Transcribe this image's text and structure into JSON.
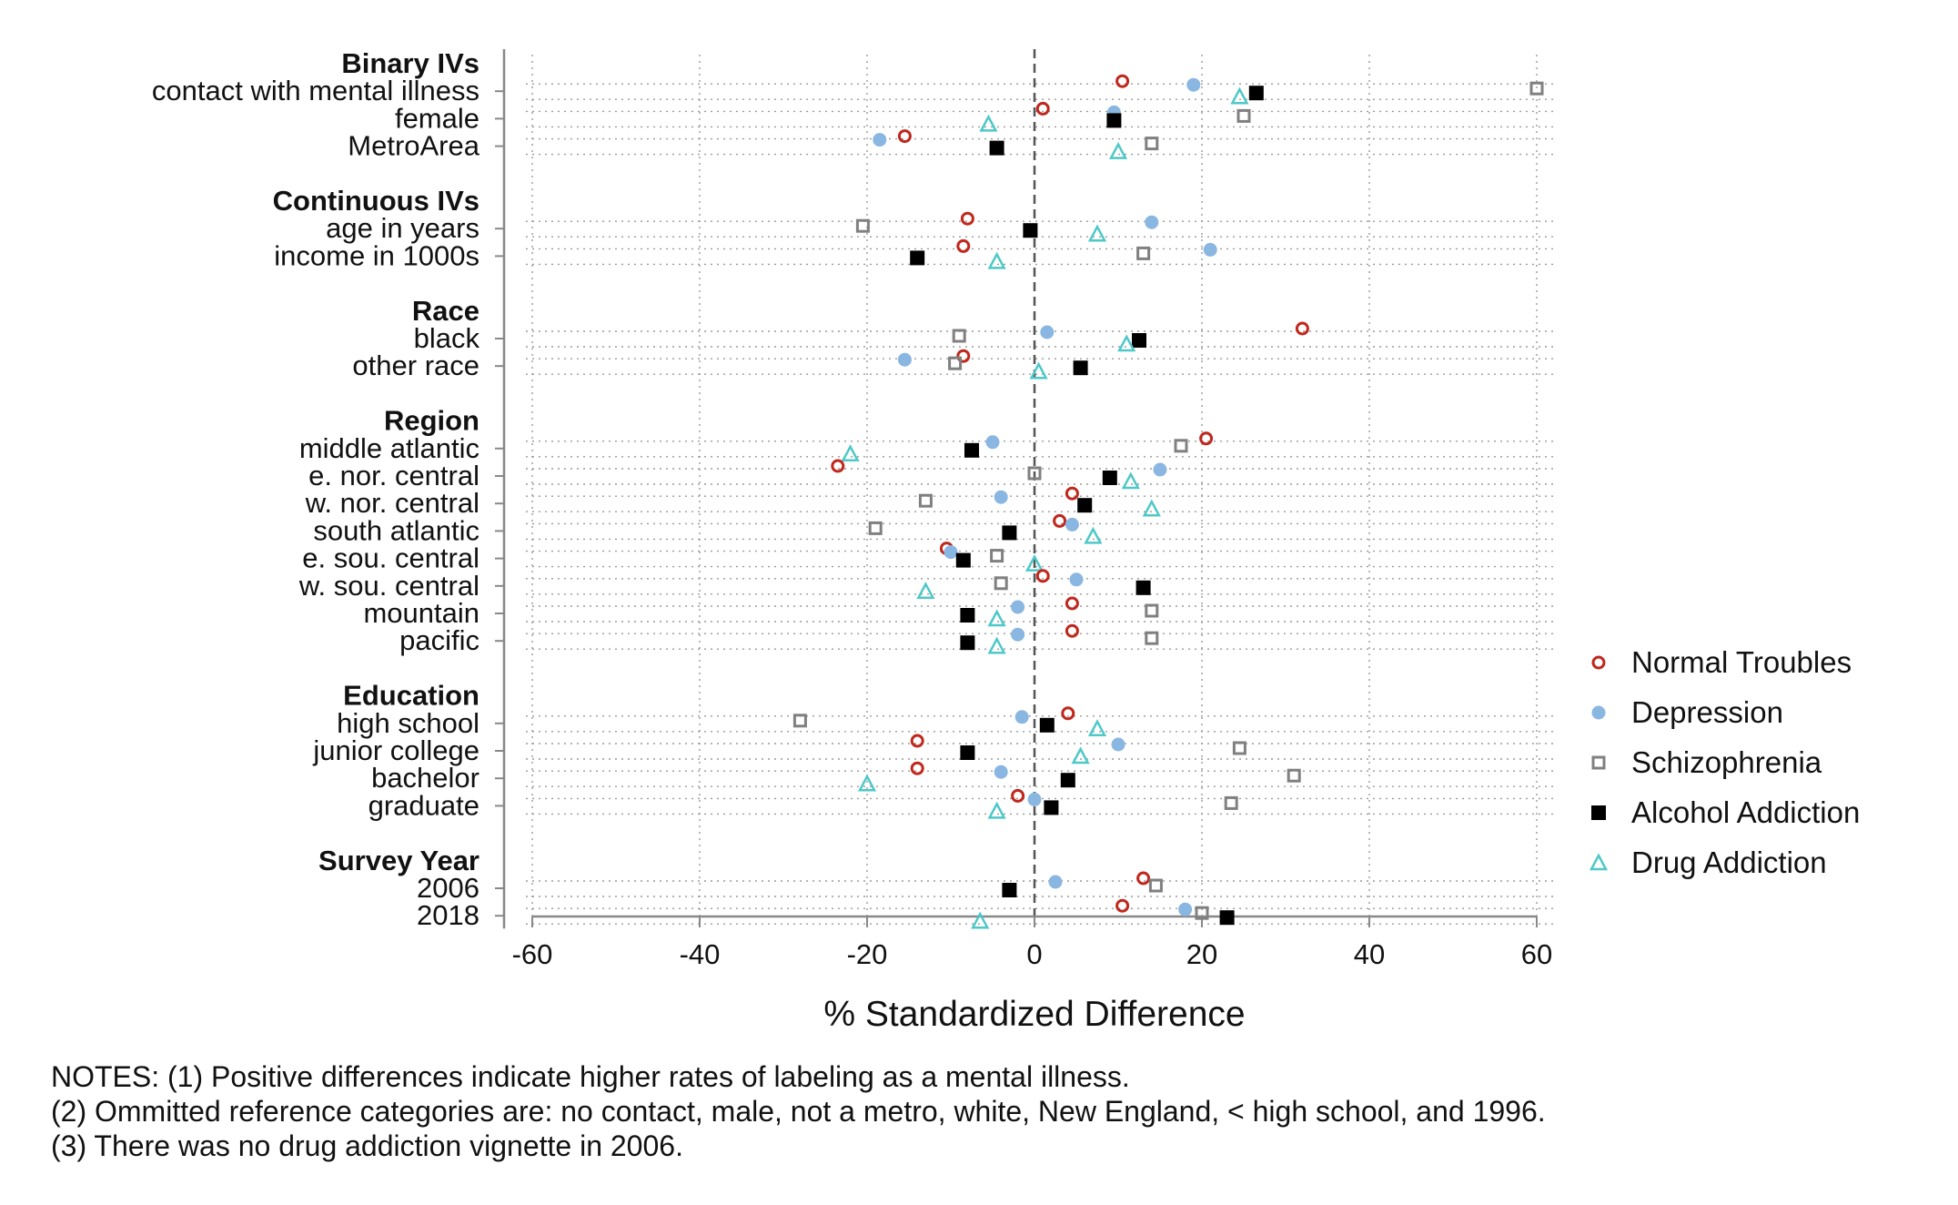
{
  "chart_data": {
    "type": "scatter",
    "xlabel": "% Standardized Difference",
    "xlim": [
      -60,
      60
    ],
    "xticks": [
      "-60",
      "-40",
      "-20",
      "0",
      "20",
      "40",
      "60"
    ],
    "reference_line": 0,
    "grid": true,
    "legend_position": "right",
    "series": [
      {
        "name": "Normal Troubles",
        "marker": "hollow-circle",
        "color": "#c0281e"
      },
      {
        "name": "Depression",
        "marker": "filled-circle",
        "color": "#8ab6e2"
      },
      {
        "name": "Schizophrenia",
        "marker": "hollow-square",
        "color": "#808080"
      },
      {
        "name": "Alcohol Addiction",
        "marker": "filled-square",
        "color": "#000000"
      },
      {
        "name": "Drug Addiction",
        "marker": "hollow-triangle",
        "color": "#4fc8c8"
      }
    ],
    "groups": [
      {
        "label": "Binary IVs",
        "rows": [
          {
            "label": "contact with mental illness",
            "values": [
              10.5,
              19,
              60,
              26.5,
              24.5
            ]
          },
          {
            "label": "female",
            "values": [
              1,
              9.5,
              25,
              9.5,
              -5.5
            ]
          },
          {
            "label": "MetroArea",
            "values": [
              -15.5,
              -18.5,
              14,
              -4.5,
              10
            ]
          }
        ]
      },
      {
        "label": "Continuous IVs",
        "rows": [
          {
            "label": "age in years",
            "values": [
              -8,
              14,
              -20.5,
              -0.5,
              7.5
            ]
          },
          {
            "label": "income in 1000s",
            "values": [
              -8.5,
              21,
              13,
              -14,
              -4.5
            ]
          }
        ]
      },
      {
        "label": "Race",
        "rows": [
          {
            "label": "black",
            "values": [
              32,
              1.5,
              -9,
              12.5,
              11
            ]
          },
          {
            "label": "other race",
            "values": [
              -8.5,
              -15.5,
              -9.5,
              5.5,
              0.5
            ]
          }
        ]
      },
      {
        "label": "Region",
        "rows": [
          {
            "label": "middle atlantic",
            "values": [
              20.5,
              -5,
              17.5,
              -7.5,
              -22
            ]
          },
          {
            "label": "e. nor. central",
            "values": [
              -23.5,
              15,
              0,
              9,
              11.5
            ]
          },
          {
            "label": "w. nor. central",
            "values": [
              4.5,
              -4,
              -13,
              6,
              14
            ]
          },
          {
            "label": "south atlantic",
            "values": [
              3,
              4.5,
              -19,
              -3,
              7
            ]
          },
          {
            "label": "e. sou. central",
            "values": [
              -10.5,
              -10,
              -4.5,
              -8.5,
              0
            ]
          },
          {
            "label": "w. sou. central",
            "values": [
              1,
              5,
              -4,
              13,
              -13
            ]
          },
          {
            "label": "mountain",
            "values": [
              4.5,
              -2,
              14,
              -8,
              -4.5
            ]
          },
          {
            "label": "pacific",
            "values": [
              4.5,
              -2,
              14,
              -8,
              -4.5
            ]
          }
        ]
      },
      {
        "label": "Education",
        "rows": [
          {
            "label": "high school",
            "values": [
              4,
              -1.5,
              -28,
              1.5,
              7.5
            ]
          },
          {
            "label": "junior college",
            "values": [
              -14,
              10,
              24.5,
              -8,
              5.5
            ]
          },
          {
            "label": "bachelor",
            "values": [
              -14,
              -4,
              31,
              4,
              -20
            ]
          },
          {
            "label": "graduate",
            "values": [
              -2,
              0,
              23.5,
              2,
              -4.5
            ]
          }
        ]
      },
      {
        "label": "Survey Year",
        "rows": [
          {
            "label": "2006",
            "values": [
              13,
              2.5,
              14.5,
              -3,
              null
            ]
          },
          {
            "label": "2018",
            "values": [
              10.5,
              18,
              20,
              23,
              -6.5
            ]
          }
        ]
      }
    ]
  },
  "notes": [
    "NOTES: (1) Positive differences indicate higher rates of labeling as a mental illness.",
    "(2) Ommitted reference categories are: no contact, male, not a metro, white, New England, < high school, and 1996.",
    "(3) There was no drug addiction vignette in 2006."
  ]
}
